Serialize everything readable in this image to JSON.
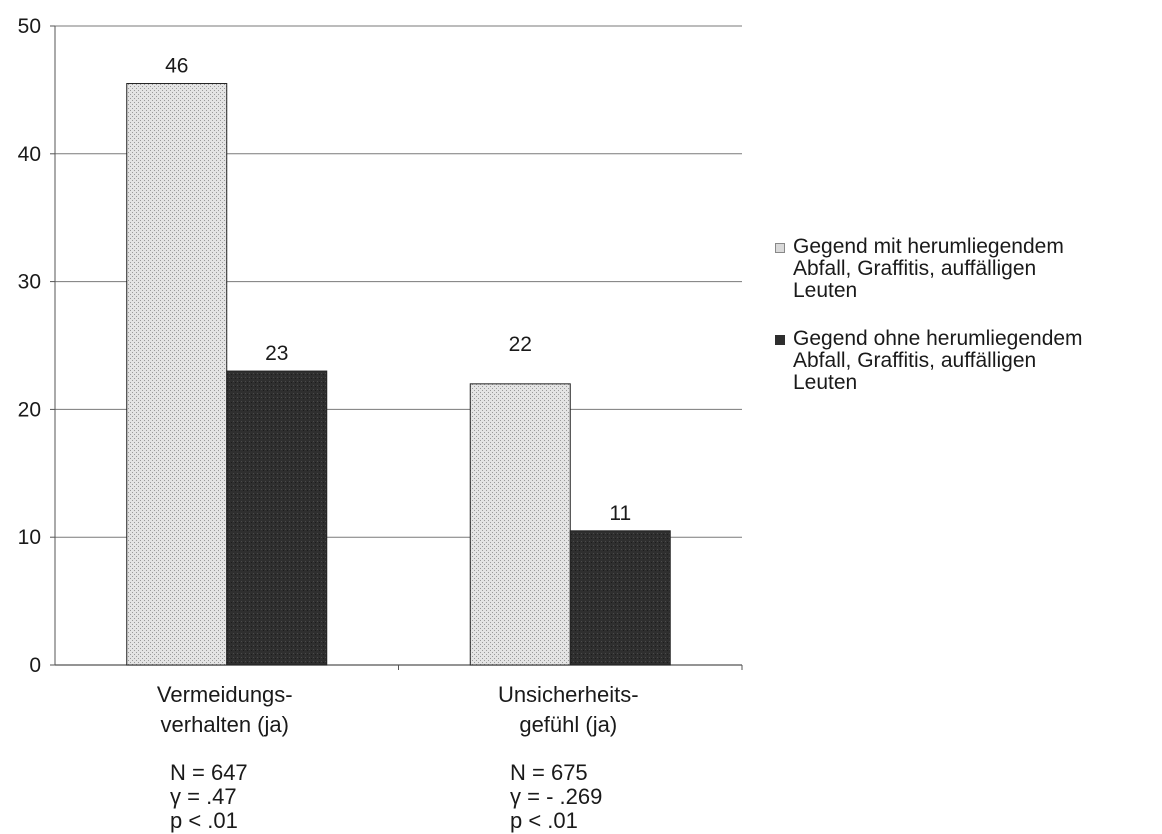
{
  "chart_data": {
    "type": "bar",
    "categories": [
      "Vermeidungs-\nverhalten (ja)",
      "Unsicherheits-\ngefühl (ja)"
    ],
    "series": [
      {
        "name": "Gegend mit herumliegendem\nAbfall, Graffitis, auffälligen\nLeuten",
        "values": [
          45.5,
          22.0
        ],
        "labels": [
          "46",
          "22"
        ],
        "color": "#d9d9d9"
      },
      {
        "name": "Gegend ohne herumliegendem\nAbfall, Graffitis, auffälligen\nLeuten",
        "values": [
          23.0,
          10.5
        ],
        "labels": [
          "23",
          "11"
        ],
        "color": "#2e2e2e"
      }
    ],
    "yticks": [
      "0",
      "10",
      "20",
      "30",
      "40",
      "50"
    ],
    "ylim": [
      0,
      50
    ],
    "grid": true,
    "legend_position": "right",
    "annotations": [
      [
        "N = 647",
        "γ  = .47",
        "p < .01"
      ],
      [
        "N = 675",
        "γ = - .269",
        "p < .01"
      ]
    ]
  }
}
